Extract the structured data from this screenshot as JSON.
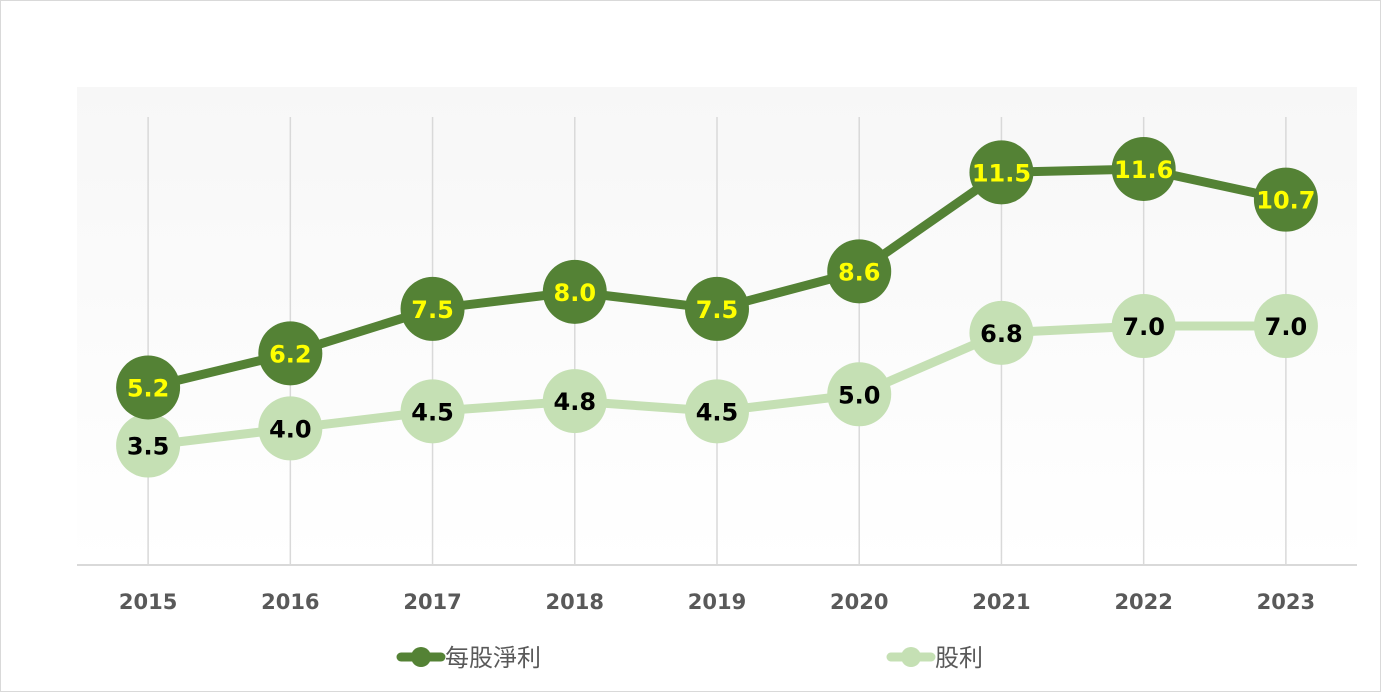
{
  "chart_data": {
    "type": "line",
    "categories": [
      "2015",
      "2016",
      "2017",
      "2018",
      "2019",
      "2020",
      "2021",
      "2022",
      "2023"
    ],
    "series": [
      {
        "name": "每股淨利",
        "values": [
          5.2,
          6.2,
          7.5,
          8.0,
          7.5,
          8.6,
          11.5,
          11.6,
          10.7
        ],
        "labels": [
          "5.2",
          "6.2",
          "7.5",
          "8.0",
          "7.5",
          "8.6",
          "11.5",
          "11.6",
          "10.7"
        ],
        "color": "#548235",
        "label_color": "#ffff00"
      },
      {
        "name": "股利",
        "values": [
          3.5,
          4.0,
          4.5,
          4.8,
          4.5,
          5.0,
          6.8,
          7.0,
          7.0
        ],
        "labels": [
          "3.5",
          "4.0",
          "4.5",
          "4.8",
          "4.5",
          "5.0",
          "6.8",
          "7.0",
          "7.0"
        ],
        "color": "#c5e0b4",
        "label_color": "#000000"
      }
    ],
    "ylim": [
      0,
      14
    ],
    "grid": "vertical",
    "legend": "bottom"
  }
}
